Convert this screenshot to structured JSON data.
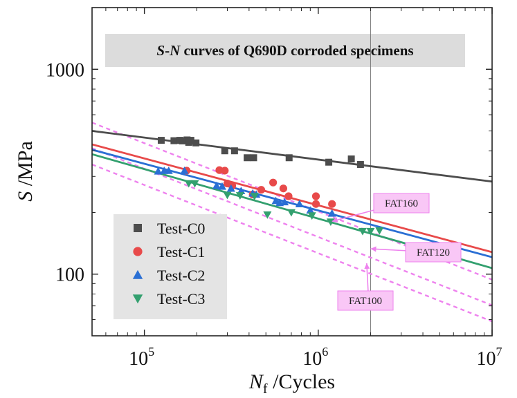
{
  "chart_data": {
    "type": "scatter",
    "title": "S-N curves of Q690D corroded specimens",
    "title_parts": {
      "s": "S",
      "dash": "-",
      "n": "N",
      "rest": " curves of Q690D corroded specimens"
    },
    "xlabel": {
      "symbol": "N",
      "subscript": "f",
      "unit": " /Cycles"
    },
    "ylabel": {
      "symbol": "S",
      "unit": " /MPa"
    },
    "xscale": "log",
    "yscale": "log",
    "xlim": [
      50000,
      10000000
    ],
    "ylim": [
      50,
      2000
    ],
    "x_ticks": [
      {
        "value": 100000,
        "base": "10",
        "exp": "5"
      },
      {
        "value": 1000000,
        "base": "10",
        "exp": "6"
      },
      {
        "value": 10000000,
        "base": "10",
        "exp": "7"
      }
    ],
    "y_ticks": [
      {
        "value": 100,
        "label": "100"
      },
      {
        "value": 1000,
        "label": "1000"
      }
    ],
    "grid": false,
    "legend_position": "bottom-left",
    "reference_line_x": 2000000,
    "series": [
      {
        "name": "Test-C0",
        "marker": "square",
        "color": "#4d4d4d",
        "points": [
          [
            125000,
            450
          ],
          [
            148000,
            448
          ],
          [
            160000,
            450
          ],
          [
            165000,
            447
          ],
          [
            176000,
            452
          ],
          [
            180000,
            440
          ],
          [
            185000,
            450
          ],
          [
            198000,
            437
          ],
          [
            290000,
            400
          ],
          [
            330000,
            400
          ],
          [
            390000,
            370
          ],
          [
            425000,
            370
          ],
          [
            680000,
            370
          ],
          [
            1150000,
            352
          ],
          [
            1550000,
            365
          ],
          [
            1750000,
            343
          ]
        ],
        "fit": {
          "x": [
            50000,
            10000000
          ],
          "y": [
            500,
            283
          ]
        }
      },
      {
        "name": "Test-C1",
        "marker": "circle",
        "color": "#e84a4a",
        "points": [
          [
            175000,
            320
          ],
          [
            270000,
            322
          ],
          [
            290000,
            320
          ],
          [
            300000,
            277
          ],
          [
            320000,
            270
          ],
          [
            420000,
            245
          ],
          [
            470000,
            258
          ],
          [
            550000,
            280
          ],
          [
            630000,
            262
          ],
          [
            675000,
            240
          ],
          [
            970000,
            240
          ],
          [
            970000,
            220
          ],
          [
            1200000,
            220
          ]
        ],
        "fit": {
          "x": [
            50000,
            10000000
          ],
          "y": [
            430,
            128
          ]
        }
      },
      {
        "name": "Test-C2",
        "marker": "triangle-up",
        "color": "#2a6fd4",
        "points": [
          [
            120000,
            318
          ],
          [
            130000,
            320
          ],
          [
            138000,
            320
          ],
          [
            170000,
            320
          ],
          [
            260000,
            270
          ],
          [
            280000,
            268
          ],
          [
            315000,
            262
          ],
          [
            360000,
            255
          ],
          [
            420000,
            248
          ],
          [
            440000,
            245
          ],
          [
            570000,
            228
          ],
          [
            600000,
            223
          ],
          [
            640000,
            225
          ],
          [
            780000,
            220
          ],
          [
            900000,
            205
          ],
          [
            1200000,
            198
          ]
        ],
        "fit": {
          "x": [
            50000,
            10000000
          ],
          "y": [
            405,
            121
          ]
        }
      },
      {
        "name": "Test-C3",
        "marker": "triangle-down",
        "color": "#33a06f",
        "points": [
          [
            180000,
            277
          ],
          [
            195000,
            277
          ],
          [
            300000,
            243
          ],
          [
            355000,
            242
          ],
          [
            430000,
            240
          ],
          [
            510000,
            195
          ],
          [
            700000,
            200
          ],
          [
            920000,
            193
          ],
          [
            1180000,
            180
          ],
          [
            1800000,
            162
          ],
          [
            2000000,
            162
          ],
          [
            2250000,
            163
          ]
        ],
        "fit": {
          "x": [
            50000,
            10000000
          ],
          "y": [
            385,
            107
          ]
        }
      }
    ],
    "reference_curves": [
      {
        "x": [
          50000,
          10000000
        ],
        "y": [
          549,
          94
        ],
        "color": "#ee82ee",
        "style": "dashed"
      },
      {
        "x": [
          50000,
          10000000
        ],
        "y": [
          412,
          70.5
        ],
        "color": "#ee82ee",
        "style": "dashed"
      },
      {
        "x": [
          50000,
          10000000
        ],
        "y": [
          343,
          58.8
        ],
        "color": "#ee82ee",
        "style": "dashed"
      }
    ],
    "annotations": [
      {
        "text": "FAT160",
        "color": "#ee82ee",
        "box_fill": "#f9c7f6",
        "target": [
          1200000,
          181
        ]
      },
      {
        "text": "FAT120",
        "color": "#ee82ee",
        "box_fill": "#f9c7f6",
        "target": [
          2000000,
          133
        ]
      },
      {
        "text": "FAT100",
        "color": "#ee82ee",
        "box_fill": "#f9c7f6",
        "target": [
          1900000,
          113
        ]
      }
    ]
  }
}
